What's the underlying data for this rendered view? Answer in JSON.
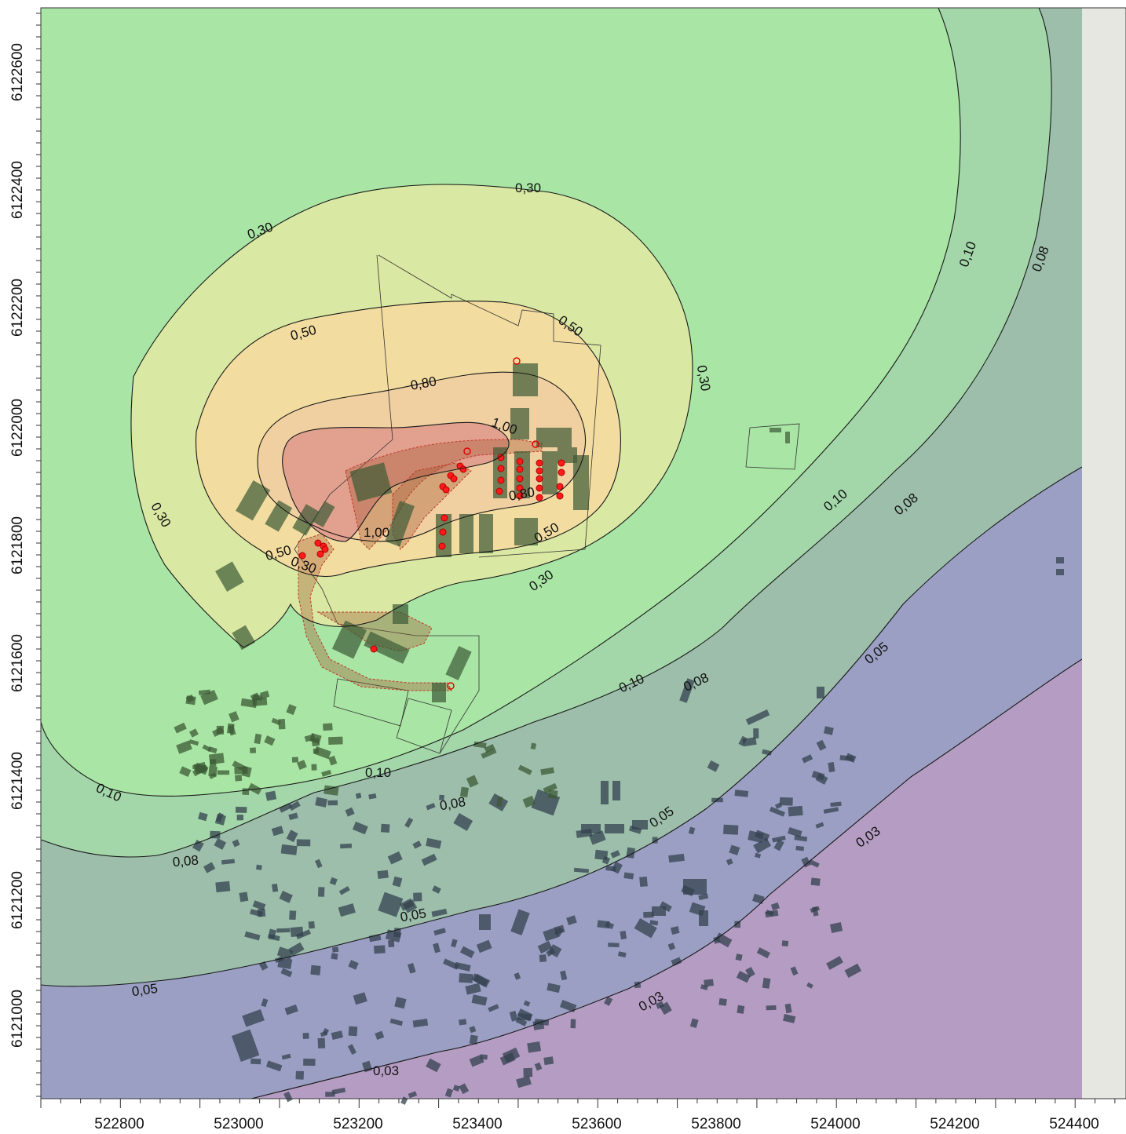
{
  "map": {
    "x_axis_ticks": [
      "522800",
      "523000",
      "523200",
      "523400",
      "523600",
      "523800",
      "524000",
      "524200",
      "524400"
    ],
    "y_axis_ticks": [
      "6122600",
      "6122400",
      "6122200",
      "6122000",
      "6121800",
      "6121600",
      "6121400",
      "6121200",
      "6121000"
    ],
    "isolines": [
      {
        "value": "1,00",
        "labels": [
          "1,00",
          "1,00"
        ]
      },
      {
        "value": "0,80",
        "labels": [
          "0,80",
          "0,80"
        ]
      },
      {
        "value": "0,50",
        "labels": [
          "0,50",
          "0,50",
          "0,50",
          "0,50"
        ]
      },
      {
        "value": "0,30",
        "labels": [
          "0,30",
          "0,30",
          "0,30",
          "0,30",
          "0,30"
        ]
      },
      {
        "value": "0,10",
        "labels": [
          "0,10",
          "0,10",
          "0,10",
          "0,10",
          "0,10"
        ]
      },
      {
        "value": "0,08",
        "labels": [
          "0,08",
          "0,08",
          "0,08",
          "0,08",
          "0,08"
        ]
      },
      {
        "value": "0,05",
        "labels": [
          "0,05",
          "0,05",
          "0,05",
          "0,05"
        ]
      },
      {
        "value": "0,03",
        "labels": [
          "0,03",
          "0,03",
          "0,03"
        ]
      }
    ],
    "zone_colors": {
      "very_high": "#e2a08e",
      "high": "#f2dc9f",
      "mid": "#d9e8a2",
      "low": "#a9e5a4",
      "lower": "#9cbeaa",
      "lowest": "#9a9fc3",
      "min": "#b59cc2",
      "off_grid": "#e5e7e0"
    }
  }
}
